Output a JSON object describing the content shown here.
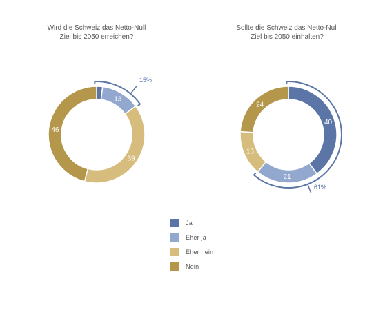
{
  "colors": {
    "ja": "#5b76a6",
    "eher_ja": "#93a8cf",
    "eher_nein": "#d6bd7d",
    "nein": "#b4974b",
    "highlight": "#5b76a6"
  },
  "legend": [
    {
      "label": "Ja",
      "color": "#5b76a6"
    },
    {
      "label": "Eher ja",
      "color": "#93a8cf"
    },
    {
      "label": "Eher nein",
      "color": "#d6bd7d"
    },
    {
      "label": "Nein",
      "color": "#b4974b"
    }
  ],
  "chart_data": [
    {
      "type": "pie",
      "variant": "donut",
      "title_lines": [
        "Wird die Schweiz das Netto-Null",
        "Ziel bis 2050 erreichen?"
      ],
      "categories": [
        "Ja",
        "Eher ja",
        "Eher nein",
        "Nein"
      ],
      "values": [
        2,
        13,
        39,
        46
      ],
      "data_labels": [
        "",
        "13",
        "39",
        "46"
      ],
      "highlight": {
        "categories": [
          "Ja",
          "Eher ja"
        ],
        "label": "15%"
      }
    },
    {
      "type": "pie",
      "variant": "donut",
      "title_lines": [
        "Sollte die Schweiz das Netto-Null",
        "Ziel bis 2050 einhalten?"
      ],
      "categories": [
        "Ja",
        "Eher ja",
        "Eher nein",
        "Nein"
      ],
      "values": [
        40,
        21,
        15,
        24
      ],
      "data_labels": [
        "40",
        "21",
        "15",
        "24"
      ],
      "highlight": {
        "categories": [
          "Ja",
          "Eher ja"
        ],
        "label": "61%"
      }
    }
  ]
}
